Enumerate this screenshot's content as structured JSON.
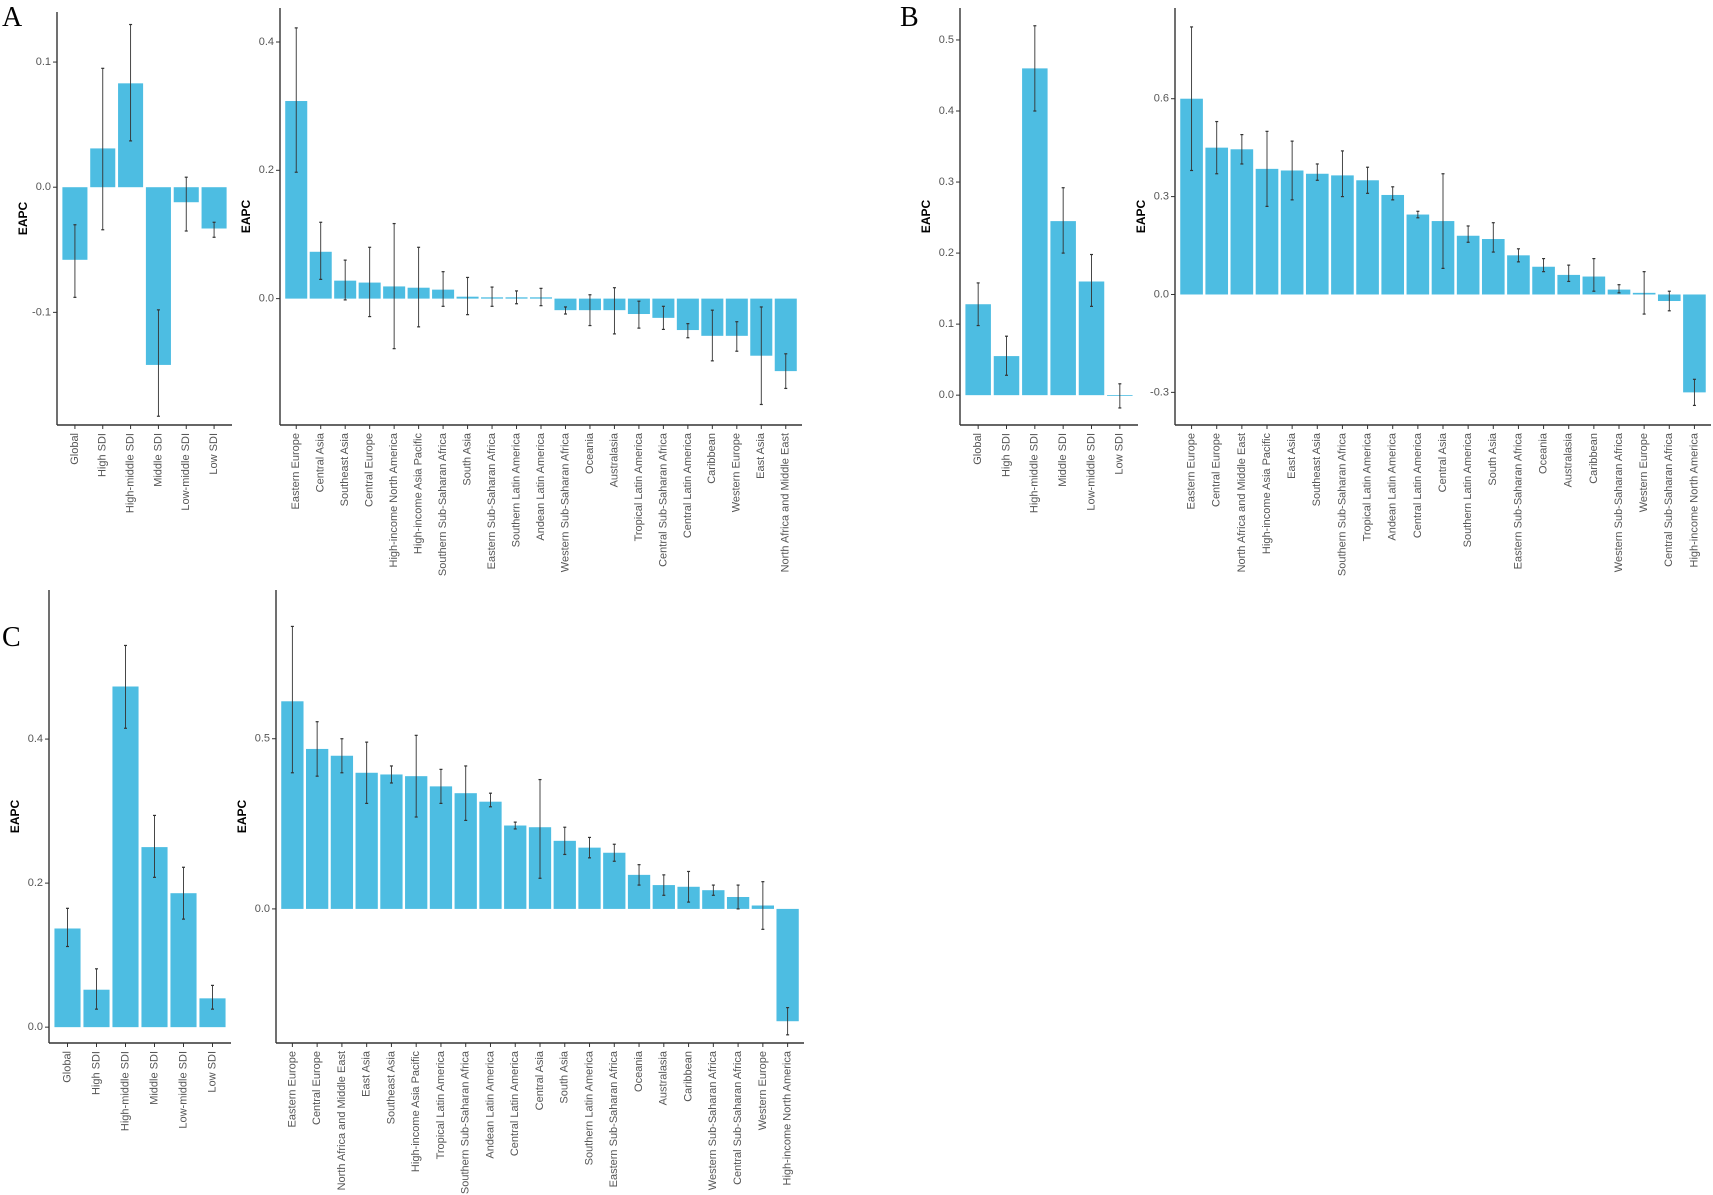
{
  "panel_letters": [
    "A",
    "B",
    "C"
  ],
  "chart_data": [
    {
      "type": "bar",
      "panel": "A",
      "ylabel": "EAPC",
      "xlabel": "",
      "title": "",
      "yticks": [
        -0.1,
        0.0,
        0.1
      ],
      "ylim": [
        -0.19,
        0.14
      ],
      "error_bars": true,
      "grid": false,
      "categories": [
        "Global",
        "High SDI",
        "High-middle SDI",
        "Middle SDI",
        "Low-middle SDI",
        "Low SDI"
      ],
      "values": [
        -0.058,
        0.031,
        0.083,
        -0.142,
        -0.012,
        -0.033
      ],
      "lower": [
        -0.088,
        -0.034,
        0.037,
        -0.183,
        -0.035,
        -0.04
      ],
      "upper": [
        -0.03,
        0.095,
        0.13,
        -0.098,
        0.008,
        -0.028
      ]
    },
    {
      "type": "bar",
      "panel": "A",
      "ylabel": "EAPC",
      "xlabel": "",
      "title": "",
      "yticks": [
        0.0,
        0.2,
        0.4
      ],
      "ylim": [
        -0.197,
        0.453
      ],
      "error_bars": true,
      "grid": false,
      "categories": [
        "Eastern Europe",
        "Central Asia",
        "Southeast Asia",
        "Central Europe",
        "High-income North America",
        "High-income Asia Pacific",
        "Southern Sub-Saharan Africa",
        "South Asia",
        "Eastern Sub-Saharan Africa",
        "Southern Latin America",
        "Andean Latin America",
        "Western Sub-Saharan Africa",
        "Oceania",
        "Australasia",
        "Tropical Latin America",
        "Central Sub-Saharan Africa",
        "Central Latin America",
        "Caribbean",
        "Western Europe",
        "East Asia",
        "North Africa and Middle East"
      ],
      "values": [
        0.308,
        0.073,
        0.028,
        0.025,
        0.019,
        0.017,
        0.014,
        0.003,
        0.002,
        0.002,
        0.002,
        -0.018,
        -0.018,
        -0.018,
        -0.024,
        -0.03,
        -0.049,
        -0.058,
        -0.058,
        -0.089,
        -0.113
      ],
      "lower": [
        0.197,
        0.03,
        -0.002,
        -0.028,
        -0.078,
        -0.044,
        -0.012,
        -0.025,
        -0.012,
        -0.008,
        -0.011,
        -0.024,
        -0.042,
        -0.055,
        -0.046,
        -0.048,
        -0.061,
        -0.097,
        -0.082,
        -0.165,
        -0.14
      ],
      "upper": [
        0.422,
        0.119,
        0.06,
        0.08,
        0.117,
        0.08,
        0.042,
        0.033,
        0.018,
        0.012,
        0.016,
        -0.013,
        0.006,
        0.017,
        -0.004,
        -0.012,
        -0.039,
        -0.018,
        -0.036,
        -0.013,
        -0.086
      ]
    },
    {
      "type": "bar",
      "panel": "B",
      "ylabel": "EAPC",
      "xlabel": "",
      "title": "",
      "yticks": [
        0.0,
        0.1,
        0.2,
        0.3,
        0.4,
        0.5
      ],
      "ylim": [
        -0.042,
        0.545
      ],
      "error_bars": true,
      "grid": false,
      "categories": [
        "Global",
        "High SDI",
        "High-middle SDI",
        "Middle SDI",
        "Low-middle SDI",
        "Low SDI"
      ],
      "values": [
        0.128,
        0.055,
        0.46,
        0.245,
        0.16,
        0.0
      ],
      "lower": [
        0.098,
        0.028,
        0.4,
        0.2,
        0.125,
        -0.018
      ],
      "upper": [
        0.158,
        0.083,
        0.52,
        0.292,
        0.198,
        0.016
      ]
    },
    {
      "type": "bar",
      "panel": "B",
      "ylabel": "EAPC",
      "xlabel": "",
      "title": "",
      "yticks": [
        -0.3,
        0.0,
        0.3,
        0.6
      ],
      "ylim": [
        -0.4,
        0.878
      ],
      "error_bars": true,
      "grid": false,
      "categories": [
        "Eastern Europe",
        "Central Europe",
        "North Africa and Middle East",
        "High-income Asia Pacific",
        "East Asia",
        "Southeast Asia",
        "Southern Sub-Saharan Africa",
        "Tropical Latin America",
        "Andean Latin America",
        "Central Latin America",
        "Central Asia",
        "Southern Latin America",
        "South Asia",
        "Eastern Sub-Saharan Africa",
        "Oceania",
        "Australasia",
        "Caribbean",
        "Western Sub-Saharan Africa",
        "Western Europe",
        "Central Sub-Saharan Africa",
        "High-income North America"
      ],
      "values": [
        0.6,
        0.45,
        0.445,
        0.385,
        0.38,
        0.37,
        0.365,
        0.35,
        0.305,
        0.245,
        0.225,
        0.18,
        0.17,
        0.12,
        0.085,
        0.06,
        0.055,
        0.015,
        0.005,
        -0.02,
        -0.3
      ],
      "lower": [
        0.38,
        0.37,
        0.4,
        0.27,
        0.29,
        0.35,
        0.3,
        0.31,
        0.29,
        0.235,
        0.08,
        0.16,
        0.13,
        0.1,
        0.07,
        0.04,
        0.01,
        0.005,
        -0.06,
        -0.05,
        -0.34
      ],
      "upper": [
        0.82,
        0.53,
        0.49,
        0.5,
        0.47,
        0.4,
        0.44,
        0.39,
        0.33,
        0.255,
        0.37,
        0.21,
        0.22,
        0.14,
        0.11,
        0.09,
        0.11,
        0.03,
        0.07,
        0.01,
        -0.26
      ]
    },
    {
      "type": "bar",
      "panel": "C",
      "ylabel": "EAPC",
      "xlabel": "",
      "title": "",
      "yticks": [
        0.0,
        0.2,
        0.4
      ],
      "ylim": [
        -0.022,
        0.607
      ],
      "error_bars": true,
      "grid": false,
      "categories": [
        "Global",
        "High SDI",
        "High-middle SDI",
        "Middle SDI",
        "Low-middle SDI",
        "Low SDI"
      ],
      "values": [
        0.137,
        0.052,
        0.473,
        0.25,
        0.186,
        0.04
      ],
      "lower": [
        0.112,
        0.025,
        0.415,
        0.208,
        0.15,
        0.025
      ],
      "upper": [
        0.165,
        0.081,
        0.53,
        0.294,
        0.222,
        0.058
      ]
    },
    {
      "type": "bar",
      "panel": "C",
      "ylabel": "EAPC",
      "xlabel": "",
      "title": "",
      "yticks": [
        0.0,
        0.5
      ],
      "ylim": [
        -0.394,
        0.937
      ],
      "error_bars": true,
      "grid": false,
      "categories": [
        "Eastern Europe",
        "Central Europe",
        "North Africa and Middle East",
        "East Asia",
        "Southeast Asia",
        "High-income Asia Pacific",
        "Tropical Latin America",
        "Southern Sub-Saharan Africa",
        "Andean Latin America",
        "Central Latin America",
        "Central Asia",
        "South Asia",
        "Southern Latin America",
        "Eastern Sub-Saharan Africa",
        "Oceania",
        "Australasia",
        "Caribbean",
        "Western Sub-Saharan Africa",
        "Central Sub-Saharan Africa",
        "Western Europe",
        "High-income North America"
      ],
      "values": [
        0.61,
        0.47,
        0.45,
        0.4,
        0.395,
        0.39,
        0.36,
        0.34,
        0.315,
        0.245,
        0.24,
        0.2,
        0.18,
        0.165,
        0.1,
        0.07,
        0.065,
        0.055,
        0.035,
        0.01,
        -0.33
      ],
      "lower": [
        0.4,
        0.39,
        0.4,
        0.31,
        0.37,
        0.27,
        0.31,
        0.26,
        0.3,
        0.235,
        0.09,
        0.16,
        0.15,
        0.14,
        0.07,
        0.04,
        0.02,
        0.04,
        0.0,
        -0.06,
        -0.37
      ],
      "upper": [
        0.83,
        0.55,
        0.5,
        0.49,
        0.42,
        0.51,
        0.41,
        0.42,
        0.34,
        0.255,
        0.38,
        0.24,
        0.21,
        0.19,
        0.13,
        0.1,
        0.11,
        0.07,
        0.07,
        0.08,
        -0.29
      ]
    }
  ],
  "colors": {
    "bar": "#4dbde2",
    "axis": "#333333",
    "errorbar": "#333333",
    "tick_text": "#555555"
  }
}
